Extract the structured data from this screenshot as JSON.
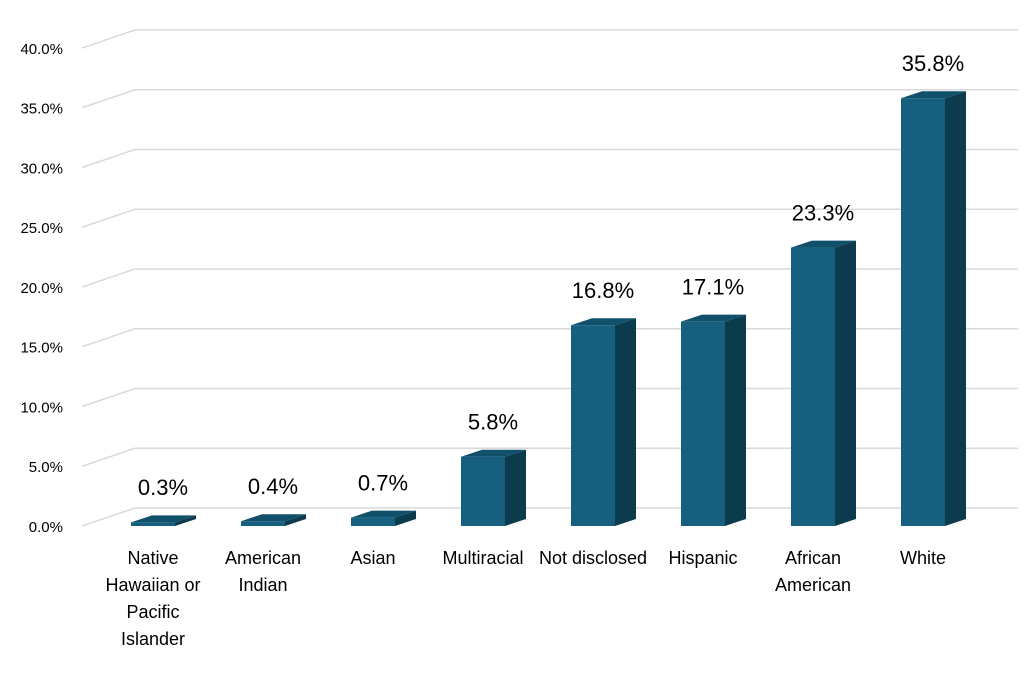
{
  "chart_data": {
    "type": "bar3d",
    "categories": [
      "Native Hawaiian or Pacific Islander",
      "American Indian",
      "Asian",
      "Multiracial",
      "Not disclosed",
      "Hispanic",
      "African American",
      "White"
    ],
    "values": [
      0.3,
      0.4,
      0.7,
      5.8,
      16.8,
      17.1,
      23.3,
      35.8
    ],
    "value_labels": [
      "0.3%",
      "0.4%",
      "0.7%",
      "5.8%",
      "16.8%",
      "17.1%",
      "23.3%",
      "35.8%"
    ],
    "color": "#175f7e",
    "ylim": [
      0,
      40
    ],
    "yticks": [
      {
        "value": 0,
        "label": "0.0%"
      },
      {
        "value": 5,
        "label": "5.0%"
      },
      {
        "value": 10,
        "label": "10.0%"
      },
      {
        "value": 15,
        "label": "15.0%"
      },
      {
        "value": 20,
        "label": "20.0%"
      },
      {
        "value": 25,
        "label": "25.0%"
      },
      {
        "value": 30,
        "label": "30.0%"
      },
      {
        "value": 35,
        "label": "35.0%"
      },
      {
        "value": 40,
        "label": "40.0%"
      }
    ],
    "grid": true
  }
}
